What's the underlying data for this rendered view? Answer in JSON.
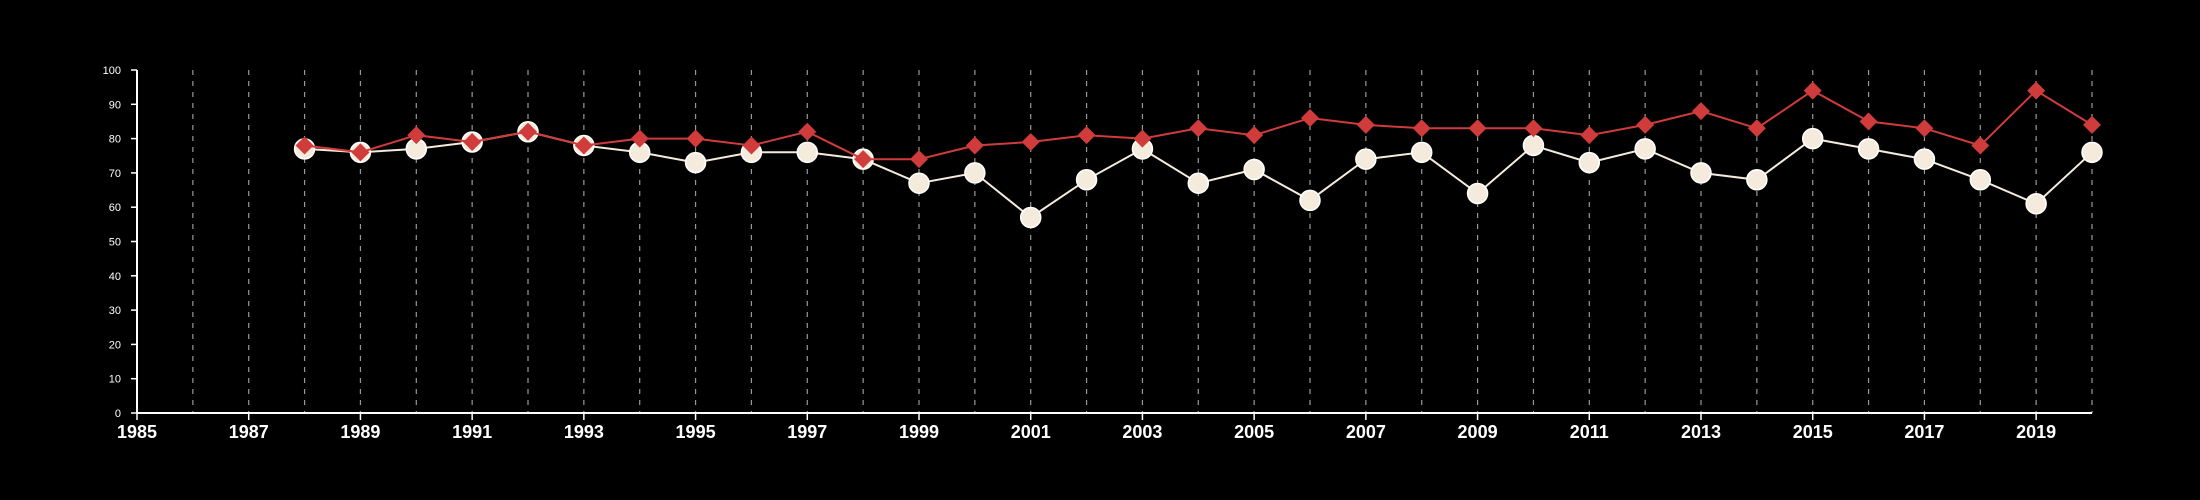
{
  "chart_data": {
    "type": "line",
    "title": "",
    "xlabel": "",
    "ylabel": "",
    "xlim": [
      1985,
      2020
    ],
    "ylim": [
      0,
      100
    ],
    "y_ticks": [
      0,
      10,
      20,
      30,
      40,
      50,
      60,
      70,
      80,
      90,
      100
    ],
    "x_ticks": [
      1985,
      1987,
      1989,
      1991,
      1993,
      1995,
      1997,
      1999,
      2001,
      2003,
      2005,
      2007,
      2009,
      2011,
      2013,
      2015,
      2017,
      2019
    ],
    "x_ticks_labels": [
      "1985",
      "1987",
      "1989",
      "1991",
      "1993",
      "1995",
      "1997",
      "1999",
      "2001",
      "2003",
      "2005",
      "2007",
      "2009",
      "2011",
      "2013",
      "2015",
      "2017",
      "2019"
    ],
    "grid": "vertical dashed",
    "legend": "none",
    "x": [
      1988,
      1989,
      1990,
      1991,
      1992,
      1993,
      1994,
      1995,
      1996,
      1997,
      1998,
      1999,
      2000,
      2001,
      2002,
      2003,
      2004,
      2005,
      2006,
      2007,
      2008,
      2009,
      2010,
      2011,
      2012,
      2013,
      2014,
      2015,
      2016,
      2017,
      2018,
      2019,
      2020
    ],
    "series": [
      {
        "color": "#f5ebdc",
        "marker": "circle",
        "values": [
          77,
          76,
          77,
          79,
          82,
          78,
          76,
          73,
          76,
          76,
          74,
          67,
          70,
          57,
          68,
          77,
          67,
          71,
          62,
          74,
          76,
          64,
          78,
          73,
          77,
          70,
          68,
          80,
          77,
          74,
          68,
          61,
          76
        ]
      },
      {
        "color": "#d03b3b",
        "marker": "diamond",
        "values": [
          78,
          76,
          81,
          79,
          82,
          78,
          80,
          80,
          78,
          82,
          74,
          74,
          78,
          79,
          81,
          80,
          83,
          81,
          86,
          84,
          83,
          83,
          83,
          81,
          84,
          88,
          83,
          94,
          85,
          83,
          78,
          94,
          84
        ]
      }
    ]
  }
}
